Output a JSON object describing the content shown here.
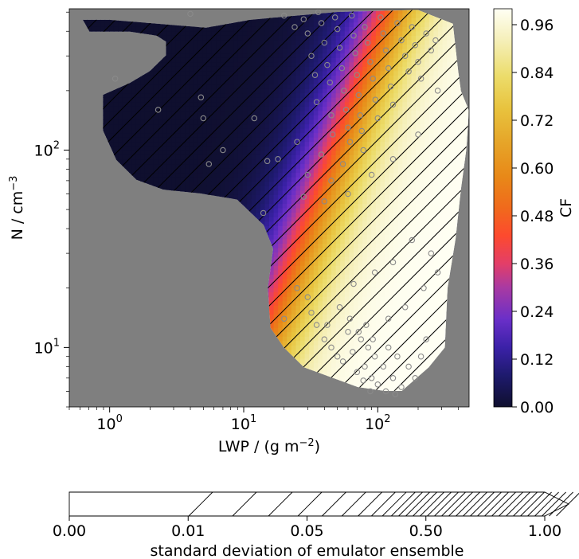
{
  "chart_data": [
    {
      "type": "heatmap",
      "xlabel": "LWP / (g m",
      "xlabel_sup": "−2",
      "xlabel_tail": ")",
      "ylabel": "N / cm",
      "ylabel_sup": "−3",
      "xscale": "log",
      "yscale": "log",
      "xlim": [
        0.5,
        480
      ],
      "ylim": [
        5,
        520
      ],
      "x_ticks": [
        {
          "value": 1,
          "base": "10",
          "exp": "0"
        },
        {
          "value": 10,
          "base": "10",
          "exp": "1"
        },
        {
          "value": 100,
          "base": "10",
          "exp": "2"
        }
      ],
      "y_ticks": [
        {
          "value": 10,
          "base": "10",
          "exp": "1"
        },
        {
          "value": 100,
          "base": "10",
          "exp": "2"
        }
      ],
      "background_color": "#7f7f7f",
      "colormap": "CMRmap",
      "region_outline_logxy": [
        [
          0.72,
          2.62
        ],
        [
          1.05,
          2.66
        ],
        [
          1.7,
          2.7
        ],
        [
          2.3,
          2.71
        ],
        [
          2.56,
          2.64
        ],
        [
          2.6,
          2.4
        ],
        [
          2.62,
          2.3
        ],
        [
          2.68,
          2.2
        ],
        [
          2.66,
          2.0
        ],
        [
          2.62,
          1.8
        ],
        [
          2.58,
          1.55
        ],
        [
          2.52,
          1.3
        ],
        [
          2.5,
          1.0
        ],
        [
          2.38,
          0.9
        ],
        [
          2.18,
          0.78
        ],
        [
          2.05,
          0.78
        ],
        [
          1.85,
          0.8
        ],
        [
          1.65,
          0.85
        ],
        [
          1.45,
          0.9
        ],
        [
          1.3,
          1.0
        ],
        [
          1.2,
          1.1
        ],
        [
          1.18,
          1.3
        ],
        [
          1.22,
          1.5
        ],
        [
          1.15,
          1.62
        ],
        [
          0.95,
          1.75
        ],
        [
          0.68,
          1.78
        ],
        [
          0.4,
          1.8
        ],
        [
          0.2,
          1.85
        ],
        [
          0.05,
          1.95
        ],
        [
          -0.05,
          2.1
        ],
        [
          -0.05,
          2.28
        ],
        [
          0.15,
          2.34
        ],
        [
          0.3,
          2.4
        ],
        [
          0.42,
          2.48
        ],
        [
          0.42,
          2.55
        ],
        [
          0.35,
          2.58
        ],
        [
          0.15,
          2.6
        ],
        [
          -0.15,
          2.6
        ],
        [
          -0.2,
          2.66
        ],
        [
          0.0,
          2.66
        ]
      ],
      "scatter_points": [
        [
          1.1,
          230
        ],
        [
          2.3,
          160
        ],
        [
          4.0,
          490
        ],
        [
          4.8,
          185
        ],
        [
          5.0,
          145
        ],
        [
          5.5,
          85
        ],
        [
          7.0,
          100
        ],
        [
          12.0,
          145
        ],
        [
          14.0,
          48
        ],
        [
          15.0,
          88
        ],
        [
          20.0,
          480
        ],
        [
          24.0,
          420
        ],
        [
          28.0,
          460
        ],
        [
          30.0,
          390
        ],
        [
          32.0,
          300
        ],
        [
          34.0,
          240
        ],
        [
          35.0,
          175
        ],
        [
          36.0,
          500
        ],
        [
          38.0,
          440
        ],
        [
          40.0,
          350
        ],
        [
          42.0,
          270
        ],
        [
          44.0,
          220
        ],
        [
          45.0,
          150
        ],
        [
          46.0,
          120
        ],
        [
          48.0,
          470
        ],
        [
          50.0,
          410
        ],
        [
          52.0,
          330
        ],
        [
          54.0,
          260
        ],
        [
          56.0,
          200
        ],
        [
          58.0,
          160
        ],
        [
          60.0,
          130
        ],
        [
          62.0,
          110
        ],
        [
          64.0,
          480
        ],
        [
          66.0,
          380
        ],
        [
          68.0,
          310
        ],
        [
          70.0,
          240
        ],
        [
          72.0,
          190
        ],
        [
          74.0,
          150
        ],
        [
          76.0,
          125
        ],
        [
          78.0,
          100
        ],
        [
          80.0,
          420
        ],
        [
          84.0,
          350
        ],
        [
          88.0,
          280
        ],
        [
          92.0,
          230
        ],
        [
          96.0,
          180
        ],
        [
          100.0,
          145
        ],
        [
          105.0,
          470
        ],
        [
          110.0,
          390
        ],
        [
          115.0,
          320
        ],
        [
          120.0,
          260
        ],
        [
          125.0,
          210
        ],
        [
          130.0,
          170
        ],
        [
          140.0,
          440
        ],
        [
          150.0,
          360
        ],
        [
          160.0,
          300
        ],
        [
          170.0,
          250
        ],
        [
          180.0,
          420
        ],
        [
          190.0,
          340
        ],
        [
          200.0,
          280
        ],
        [
          210.0,
          230
        ],
        [
          230.0,
          390
        ],
        [
          250.0,
          320
        ],
        [
          270.0,
          360
        ],
        [
          18.0,
          90
        ],
        [
          25.0,
          110
        ],
        [
          30.0,
          75
        ],
        [
          38.0,
          95
        ],
        [
          45.0,
          70
        ],
        [
          55.0,
          85
        ],
        [
          28.0,
          58
        ],
        [
          40.0,
          55
        ],
        [
          60.0,
          60
        ],
        [
          90.0,
          75
        ],
        [
          130.0,
          90
        ],
        [
          200.0,
          120
        ],
        [
          280.0,
          200
        ],
        [
          20.0,
          14
        ],
        [
          25.0,
          20
        ],
        [
          30.0,
          18
        ],
        [
          35.0,
          13
        ],
        [
          40.0,
          11
        ],
        [
          45.0,
          10
        ],
        [
          50.0,
          9
        ],
        [
          55.0,
          8.5
        ],
        [
          60.0,
          12
        ],
        [
          65.0,
          9.5
        ],
        [
          70.0,
          7.5
        ],
        [
          75.0,
          11
        ],
        [
          80.0,
          8
        ],
        [
          85.0,
          10
        ],
        [
          90.0,
          7
        ],
        [
          95.0,
          9
        ],
        [
          100.0,
          6.5
        ],
        [
          110.0,
          8
        ],
        [
          120.0,
          10
        ],
        [
          130.0,
          7
        ],
        [
          140.0,
          9
        ],
        [
          150.0,
          6.3
        ],
        [
          170.0,
          8
        ],
        [
          190.0,
          7
        ],
        [
          210.0,
          9
        ],
        [
          230.0,
          11
        ],
        [
          120.0,
          14
        ],
        [
          160.0,
          16
        ],
        [
          220.0,
          20
        ],
        [
          280.0,
          24
        ],
        [
          32.0,
          15
        ],
        [
          42.0,
          13
        ],
        [
          52.0,
          16
        ],
        [
          62.0,
          14
        ],
        [
          72.0,
          12
        ],
        [
          82.0,
          13
        ],
        [
          92.0,
          11
        ],
        [
          66.0,
          21
        ],
        [
          95.0,
          24
        ],
        [
          130.0,
          27
        ],
        [
          250.0,
          30
        ],
        [
          180.0,
          35
        ],
        [
          78.0,
          6.8
        ],
        [
          88.0,
          6.0
        ],
        [
          115.0,
          6.0
        ],
        [
          135.0,
          5.8
        ]
      ]
    },
    {
      "type": "colorbar",
      "label": "CF",
      "range": [
        0,
        1
      ],
      "ticks": [
        "0.00",
        "0.12",
        "0.24",
        "0.36",
        "0.48",
        "0.60",
        "0.72",
        "0.84",
        "0.96"
      ],
      "stops": [
        {
          "pos": 0.0,
          "color": "#0f0f2e"
        },
        {
          "pos": 0.08,
          "color": "#1e1a6e"
        },
        {
          "pos": 0.15,
          "color": "#3b21a8"
        },
        {
          "pos": 0.22,
          "color": "#6a2fc8"
        },
        {
          "pos": 0.3,
          "color": "#a93aa2"
        },
        {
          "pos": 0.36,
          "color": "#e33e68"
        },
        {
          "pos": 0.43,
          "color": "#fd4a2e"
        },
        {
          "pos": 0.5,
          "color": "#f06a1c"
        },
        {
          "pos": 0.58,
          "color": "#e88918"
        },
        {
          "pos": 0.67,
          "color": "#e6a72a"
        },
        {
          "pos": 0.75,
          "color": "#e8c33e"
        },
        {
          "pos": 0.83,
          "color": "#ecdc6a"
        },
        {
          "pos": 0.92,
          "color": "#f5efb8"
        },
        {
          "pos": 1.0,
          "color": "#fffff4"
        }
      ]
    },
    {
      "type": "colorbar",
      "orientation": "horizontal",
      "label": "standard deviation of emulator ensemble",
      "ticks": [
        "0.00",
        "0.01",
        "0.05",
        "0.50",
        "1.00"
      ],
      "fill_color": "#ffffff",
      "hatch_color": "#000000"
    }
  ]
}
